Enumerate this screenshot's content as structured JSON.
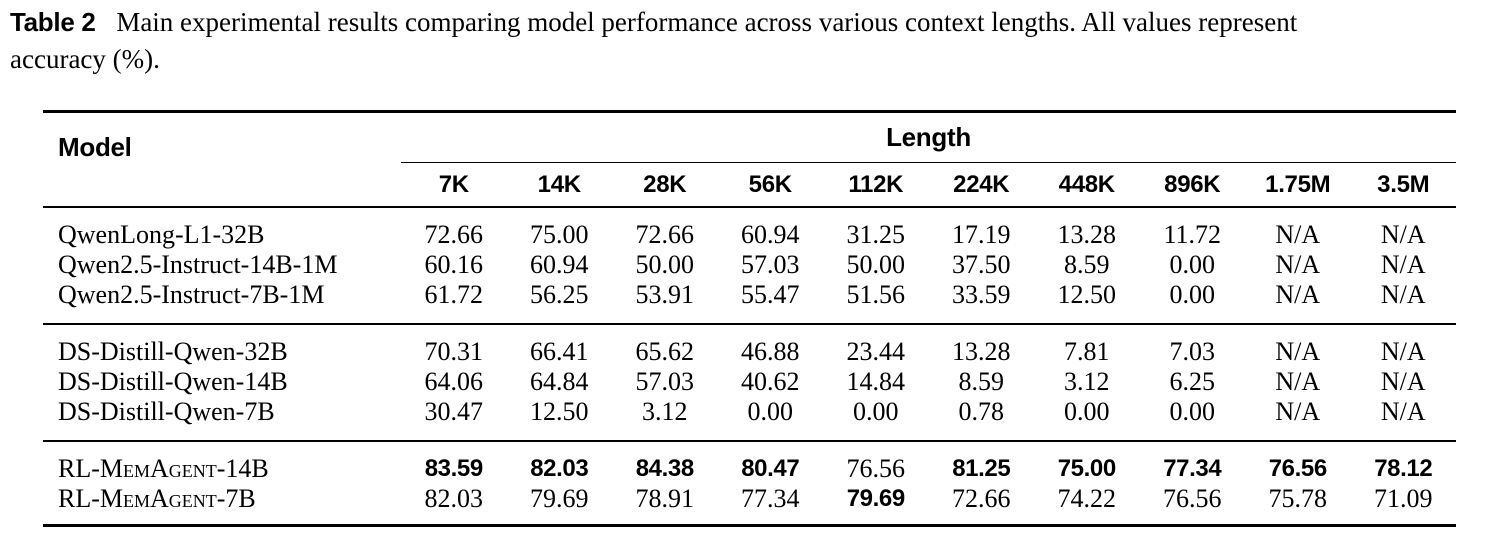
{
  "caption": {
    "label": "Table 2",
    "line1": "Main experimental results comparing model performance across various context lengths. All values represent",
    "line2": "accuracy (%)."
  },
  "table": {
    "model_header": "Model",
    "length_header": "Length",
    "columns": [
      "7K",
      "14K",
      "28K",
      "56K",
      "112K",
      "224K",
      "448K",
      "896K",
      "1.75M",
      "3.5M"
    ],
    "groups": [
      {
        "rows": [
          {
            "model": "QwenLong-L1-32B",
            "smallcaps": false,
            "values": [
              "72.66",
              "75.00",
              "72.66",
              "60.94",
              "31.25",
              "17.19",
              "13.28",
              "11.72",
              "N/A",
              "N/A"
            ],
            "bold": [
              false,
              false,
              false,
              false,
              false,
              false,
              false,
              false,
              false,
              false
            ]
          },
          {
            "model": "Qwen2.5-Instruct-14B-1M",
            "smallcaps": false,
            "values": [
              "60.16",
              "60.94",
              "50.00",
              "57.03",
              "50.00",
              "37.50",
              "8.59",
              "0.00",
              "N/A",
              "N/A"
            ],
            "bold": [
              false,
              false,
              false,
              false,
              false,
              false,
              false,
              false,
              false,
              false
            ]
          },
          {
            "model": "Qwen2.5-Instruct-7B-1M",
            "smallcaps": false,
            "values": [
              "61.72",
              "56.25",
              "53.91",
              "55.47",
              "51.56",
              "33.59",
              "12.50",
              "0.00",
              "N/A",
              "N/A"
            ],
            "bold": [
              false,
              false,
              false,
              false,
              false,
              false,
              false,
              false,
              false,
              false
            ]
          }
        ]
      },
      {
        "rows": [
          {
            "model": "DS-Distill-Qwen-32B",
            "smallcaps": false,
            "values": [
              "70.31",
              "66.41",
              "65.62",
              "46.88",
              "23.44",
              "13.28",
              "7.81",
              "7.03",
              "N/A",
              "N/A"
            ],
            "bold": [
              false,
              false,
              false,
              false,
              false,
              false,
              false,
              false,
              false,
              false
            ]
          },
          {
            "model": "DS-Distill-Qwen-14B",
            "smallcaps": false,
            "values": [
              "64.06",
              "64.84",
              "57.03",
              "40.62",
              "14.84",
              "8.59",
              "3.12",
              "6.25",
              "N/A",
              "N/A"
            ],
            "bold": [
              false,
              false,
              false,
              false,
              false,
              false,
              false,
              false,
              false,
              false
            ]
          },
          {
            "model": "DS-Distill-Qwen-7B",
            "smallcaps": false,
            "values": [
              "30.47",
              "12.50",
              "3.12",
              "0.00",
              "0.00",
              "0.78",
              "0.00",
              "0.00",
              "N/A",
              "N/A"
            ],
            "bold": [
              false,
              false,
              false,
              false,
              false,
              false,
              false,
              false,
              false,
              false
            ]
          }
        ]
      },
      {
        "rows": [
          {
            "model": "RL-MemAgent-14B",
            "smallcaps": true,
            "values": [
              "83.59",
              "82.03",
              "84.38",
              "80.47",
              "76.56",
              "81.25",
              "75.00",
              "77.34",
              "76.56",
              "78.12"
            ],
            "bold": [
              true,
              true,
              true,
              true,
              false,
              true,
              true,
              true,
              true,
              true
            ]
          },
          {
            "model": "RL-MemAgent-7B",
            "smallcaps": true,
            "values": [
              "82.03",
              "79.69",
              "78.91",
              "77.34",
              "79.69",
              "72.66",
              "74.22",
              "76.56",
              "75.78",
              "71.09"
            ],
            "bold": [
              false,
              false,
              false,
              false,
              true,
              false,
              false,
              false,
              false,
              false
            ]
          }
        ]
      }
    ]
  },
  "colors": {
    "text": "#000000",
    "background": "#ffffff",
    "rule": "#000000"
  }
}
